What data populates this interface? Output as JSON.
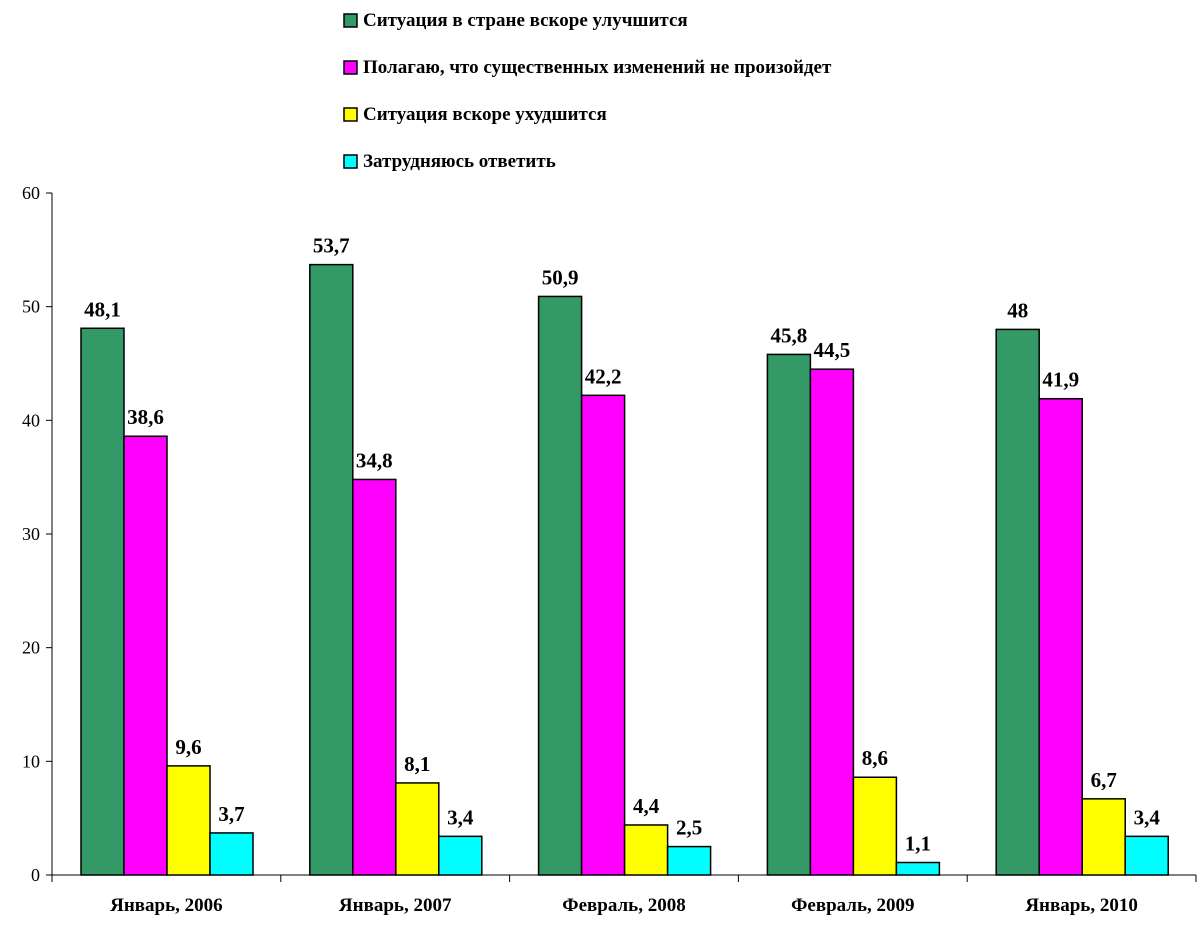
{
  "chart_data": {
    "type": "bar",
    "categories": [
      "Январь, 2006",
      "Январь, 2007",
      "Февраль, 2008",
      "Февраль, 2009",
      "Январь, 2010"
    ],
    "series": [
      {
        "name": "Ситуация в стране вскоре улучшится",
        "color": "#339966",
        "values": [
          48.1,
          53.7,
          50.9,
          45.8,
          48.0
        ],
        "labels": [
          "48,1",
          "53,7",
          "50,9",
          "45,8",
          "48"
        ]
      },
      {
        "name": "Полагаю, что существенных изменений не произойдет",
        "color": "#ff00ff",
        "values": [
          38.6,
          34.8,
          42.2,
          44.5,
          41.9
        ],
        "labels": [
          "38,6",
          "34,8",
          "42,2",
          "44,5",
          "41,9"
        ]
      },
      {
        "name": "Ситуация вскоре ухудшится",
        "color": "#ffff00",
        "values": [
          9.6,
          8.1,
          4.4,
          8.6,
          6.7
        ],
        "labels": [
          "9,6",
          "8,1",
          "4,4",
          "8,6",
          "6,7"
        ]
      },
      {
        "name": "Затрудняюсь ответить",
        "color": "#00ffff",
        "values": [
          3.7,
          3.4,
          2.5,
          1.1,
          3.4
        ],
        "labels": [
          "3,7",
          "3,4",
          "2,5",
          "1,1",
          "3,4"
        ]
      }
    ],
    "ylim": [
      0,
      60
    ],
    "yticks": [
      0,
      10,
      20,
      30,
      40,
      50,
      60
    ],
    "grid": false,
    "legend": "top"
  }
}
